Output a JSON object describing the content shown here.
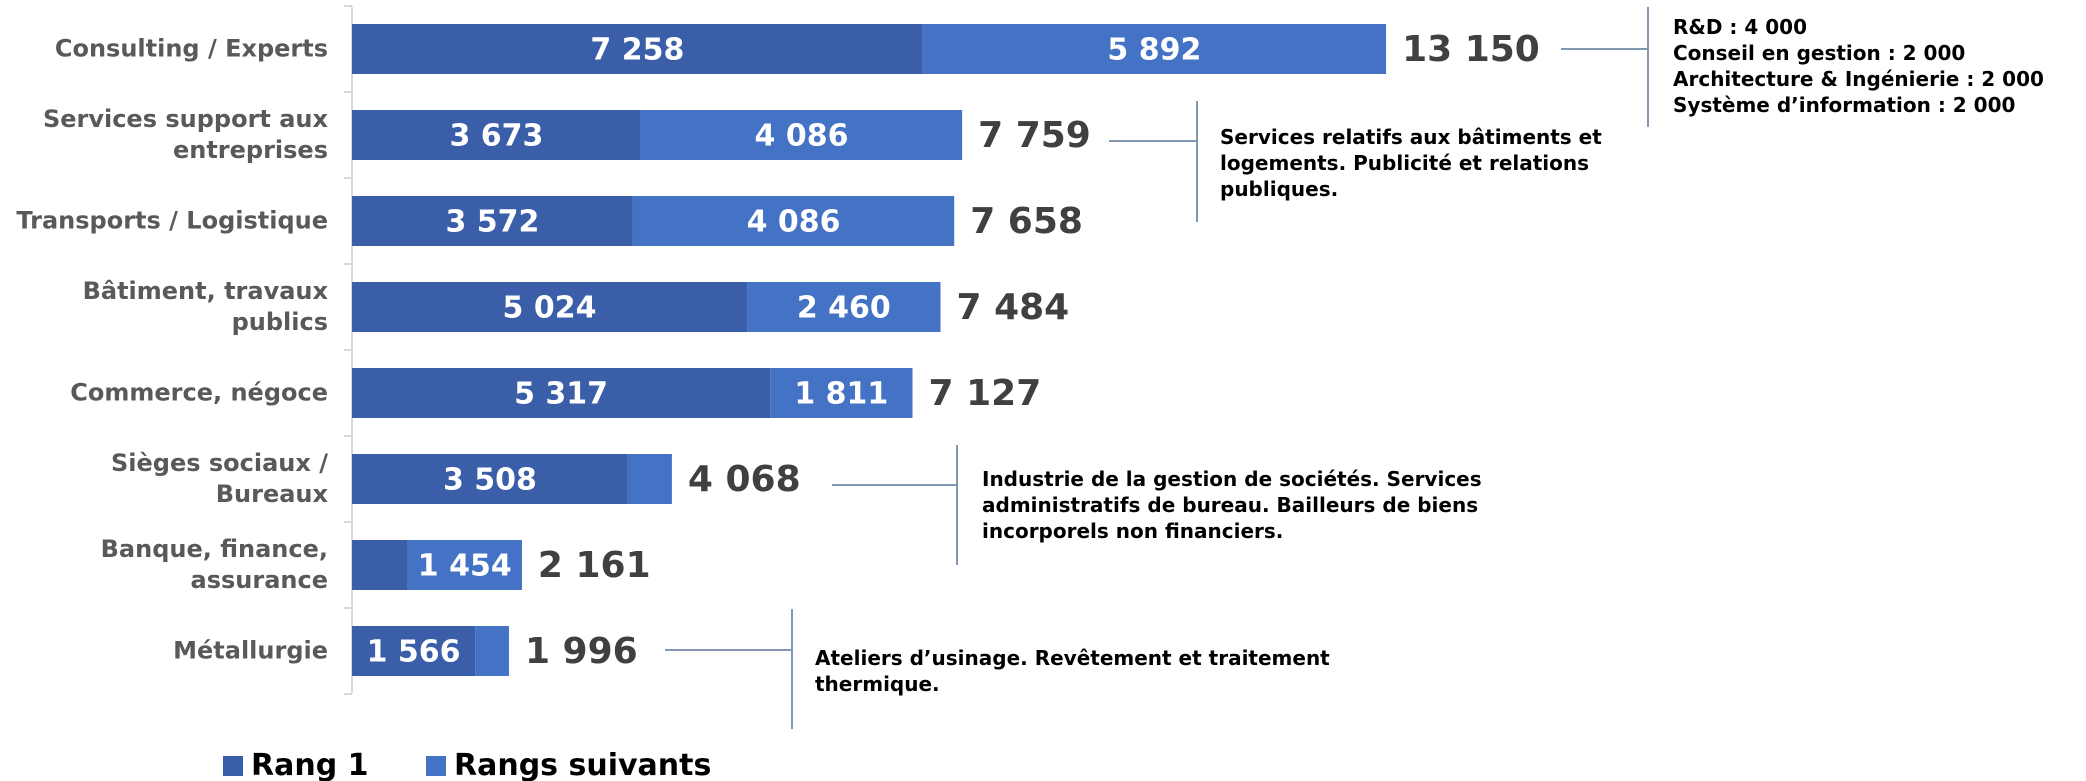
{
  "chart_data": {
    "type": "bar",
    "orientation": "horizontal",
    "stacked": true,
    "categories": [
      "Consulting / Experts",
      "Services support aux entreprises",
      "Transports / Logistique",
      "Bâtiment, travaux publics",
      "Commerce, négoce",
      "Sièges sociaux / Bureaux",
      "Banque, finance, assurance",
      "Métallurgie"
    ],
    "series": [
      {
        "name": "Rang 1",
        "color": "#3a5ea8",
        "values": [
          7258,
          3673,
          3572,
          5024,
          5317,
          3508,
          707,
          1566
        ],
        "value_labels": [
          "7 258",
          "3 673",
          "3 572",
          "5 024",
          "5 317",
          "3 508",
          null,
          "1 566"
        ]
      },
      {
        "name": "Rangs suivants",
        "color": "#4472c4",
        "values": [
          5892,
          4086,
          4086,
          2460,
          1811,
          560,
          1454,
          430
        ],
        "value_labels": [
          "5 892",
          "4 086",
          "4 086",
          "2 460",
          "1 811",
          null,
          "1 454",
          null
        ]
      }
    ],
    "totals": {
      "values": [
        13150,
        7759,
        7658,
        7484,
        7127,
        4068,
        2161,
        1996
      ],
      "value_labels": [
        "13 150",
        "7 759",
        "7 658",
        "7 484",
        "7 127",
        "4 068",
        "2 161",
        "1 996"
      ]
    },
    "xlim": [
      0,
      22000
    ],
    "legend": "bottom-left",
    "annotations": [
      {
        "lines": [
          "R&D : 4 000",
          "Conseil en gestion : 2 000",
          "Architecture & Ingénierie : 2 000",
          "Système d’information : 2 000"
        ]
      },
      {
        "text": "Services relatifs aux bâtiments et logements. Publicité et relations publiques."
      },
      {
        "text": "Industrie de la gestion de sociétés. Services administratifs de bureau. Bailleurs de biens incorporels non financiers."
      },
      {
        "text": "Ateliers d’usinage. Revêtement et traitement thermique."
      }
    ]
  }
}
